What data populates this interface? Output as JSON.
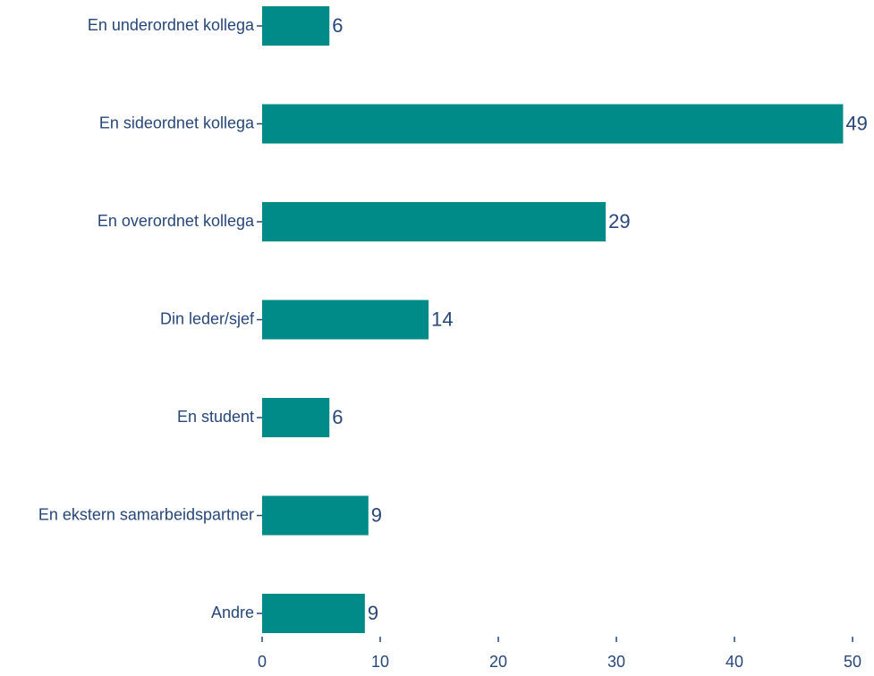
{
  "chart_data": {
    "type": "bar",
    "orientation": "horizontal",
    "categories": [
      "En underordnet kollega",
      "En sideordnet kollega",
      "En overordnet kollega",
      "Din leder/sjef",
      "En student",
      "En ekstern samarbeidspartner",
      "Andre"
    ],
    "values": [
      5.7,
      49.2,
      29.1,
      14.1,
      5.7,
      9.0,
      8.7
    ],
    "value_labels": [
      "6",
      "49",
      "29",
      "14",
      "6",
      "9",
      "9"
    ],
    "color": "#008a88",
    "xlim": [
      0,
      50
    ],
    "xticks": [
      0,
      10,
      20,
      30,
      40,
      50
    ],
    "grid": false
  }
}
